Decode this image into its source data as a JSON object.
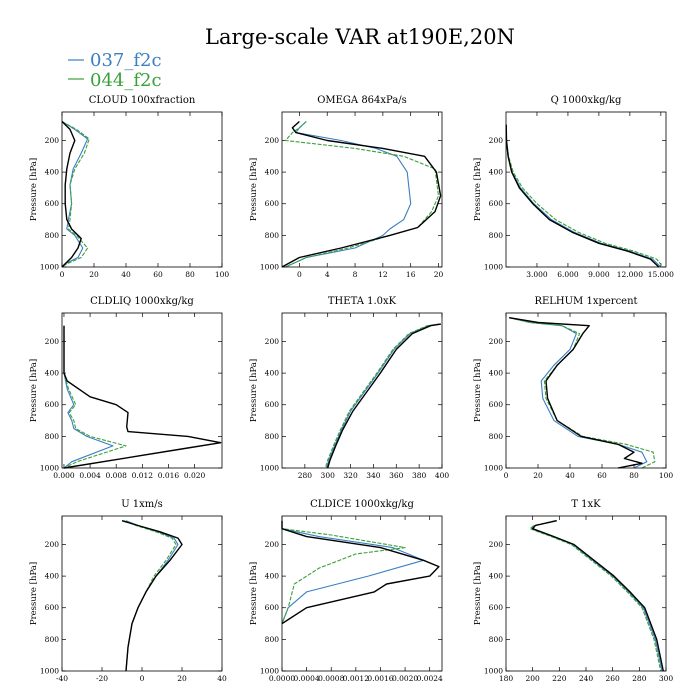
{
  "figure": {
    "title": "Large-scale VAR at190E,20N",
    "colors": {
      "s037": "#3a7fc0",
      "s044": "#3aa03a",
      "ctrl": "#000000"
    }
  },
  "chart_data": [
    {
      "type": "line",
      "title": "CLOUD  100xfraction",
      "ylabel": "Pressure [hPa]",
      "xlim": [
        0,
        100
      ],
      "ylim": [
        1000,
        20
      ],
      "xticks": [
        "0",
        "20",
        "40",
        "60",
        "80",
        "100"
      ],
      "yticks": [
        "200",
        "400",
        "600",
        "800",
        "1000"
      ],
      "series": [
        {
          "name": "037_f2c",
          "x": [
            0,
            8,
            16,
            12,
            7,
            5,
            6,
            4,
            3,
            8,
            13,
            10,
            2,
            0
          ],
          "y": [
            80,
            130,
            190,
            280,
            380,
            480,
            600,
            700,
            760,
            800,
            880,
            940,
            980,
            1000
          ]
        },
        {
          "name": "044_f2c",
          "x": [
            0,
            9,
            17,
            14,
            8,
            5,
            6,
            5,
            4,
            9,
            16,
            12,
            3,
            0
          ],
          "y": [
            80,
            130,
            190,
            280,
            380,
            480,
            600,
            700,
            760,
            800,
            880,
            940,
            980,
            1000
          ]
        },
        {
          "name": "",
          "x": [
            0,
            5,
            8,
            5,
            3,
            2,
            2,
            3,
            6,
            12,
            10,
            6,
            2,
            0
          ],
          "y": [
            80,
            130,
            200,
            280,
            380,
            480,
            600,
            700,
            760,
            820,
            880,
            940,
            980,
            1000
          ]
        }
      ]
    },
    {
      "type": "line",
      "title": "OMEGA  864xPa/s",
      "ylabel": "Pressure [hPa]",
      "xlim": [
        -2.5,
        20.5
      ],
      "ylim": [
        1000,
        20
      ],
      "xticks": [
        "0",
        "4",
        "8",
        "12",
        "16",
        "20"
      ],
      "yticks": [
        "200",
        "400",
        "600",
        "800",
        "1000"
      ],
      "series": [
        {
          "name": "037_f2c",
          "x": [
            1,
            0,
            -0.5,
            6,
            11,
            14,
            15.5,
            16,
            15,
            13,
            12,
            8,
            1,
            -2
          ],
          "y": [
            80,
            120,
            150,
            200,
            250,
            300,
            400,
            600,
            700,
            760,
            800,
            880,
            940,
            1000
          ]
        },
        {
          "name": "044_f2c",
          "x": [
            1,
            0,
            -1,
            -2,
            8,
            15,
            19.5,
            20,
            19,
            17,
            13,
            7,
            1,
            -2
          ],
          "y": [
            80,
            120,
            150,
            200,
            250,
            300,
            380,
            550,
            650,
            750,
            800,
            880,
            940,
            1000
          ]
        },
        {
          "name": "",
          "x": [
            0,
            -1,
            -0.5,
            4,
            12,
            18,
            19.7,
            20.3,
            19.5,
            17,
            13,
            6,
            0,
            -2.5
          ],
          "y": [
            80,
            120,
            150,
            200,
            250,
            300,
            400,
            550,
            650,
            750,
            800,
            880,
            940,
            1000
          ]
        }
      ]
    },
    {
      "type": "line",
      "title": "Q  1000xkg/kg",
      "ylabel": "Pressure [hPa]",
      "xlim": [
        0,
        15.5
      ],
      "ylim": [
        1000,
        20
      ],
      "xticks": [
        "3.000",
        "6.000",
        "9.000",
        "12.000",
        "15.000"
      ],
      "yticks": [
        "200",
        "400",
        "600",
        "800",
        "1000"
      ],
      "series": [
        {
          "name": "037_f2c",
          "x": [
            0.02,
            0.05,
            0.2,
            0.6,
            1.4,
            2.7,
            4.4,
            6.6,
            9.2,
            12,
            14.2,
            15
          ],
          "y": [
            100,
            200,
            300,
            400,
            500,
            600,
            700,
            780,
            850,
            900,
            950,
            1000
          ]
        },
        {
          "name": "044_f2c",
          "x": [
            0.02,
            0.05,
            0.25,
            0.7,
            1.6,
            3,
            4.8,
            7,
            9.6,
            12.4,
            14.6,
            15.2
          ],
          "y": [
            100,
            200,
            300,
            400,
            500,
            600,
            700,
            780,
            850,
            900,
            950,
            1000
          ]
        },
        {
          "name": "",
          "x": [
            0.02,
            0.05,
            0.2,
            0.55,
            1.3,
            2.6,
            4.2,
            6.4,
            9,
            11.8,
            14,
            14.8
          ],
          "y": [
            100,
            200,
            300,
            400,
            500,
            600,
            700,
            780,
            850,
            900,
            950,
            1000
          ]
        }
      ]
    },
    {
      "type": "line",
      "title": "CLDLIQ  1000xkg/kg",
      "ylabel": "Pressure [hPa]",
      "xlim": [
        -0.0003,
        0.0242
      ],
      "ylim": [
        1000,
        20
      ],
      "xticks": [
        "0.000",
        "0.004",
        "0.008",
        "0.012",
        "0.016",
        "0.020"
      ],
      "yticks": [
        "200",
        "400",
        "600",
        "800",
        "1000"
      ],
      "series": [
        {
          "name": "037_f2c",
          "x": [
            0,
            0,
            0.0005,
            0.0015,
            0.0006,
            0.0012,
            0.0015,
            0.0035,
            0.0075,
            0.0012,
            0
          ],
          "y": [
            100,
            400,
            500,
            600,
            650,
            700,
            750,
            800,
            860,
            960,
            1000
          ]
        },
        {
          "name": "044_f2c",
          "x": [
            0,
            0,
            0.0007,
            0.0018,
            0.0008,
            0.0015,
            0.0018,
            0.004,
            0.0095,
            0.002,
            0
          ],
          "y": [
            100,
            400,
            500,
            600,
            650,
            700,
            750,
            800,
            860,
            960,
            1000
          ]
        },
        {
          "name": "",
          "x": [
            0,
            0,
            0.0005,
            0.004,
            0.008,
            0.0098,
            0.0097,
            0.0096,
            0.0098,
            0.019,
            0.024,
            0.018,
            0
          ],
          "y": [
            100,
            400,
            450,
            550,
            600,
            650,
            700,
            740,
            770,
            800,
            840,
            880,
            1000
          ]
        }
      ]
    },
    {
      "type": "line",
      "title": "THETA  1.0xK",
      "ylabel": "Pressure [hPa]",
      "xlim": [
        260,
        400
      ],
      "ylim": [
        1000,
        20
      ],
      "xticks": [
        "280",
        "300",
        "320",
        "340",
        "360",
        "380",
        "400"
      ],
      "yticks": [
        "200",
        "400",
        "600",
        "800",
        "1000"
      ],
      "series": [
        {
          "name": "037_f2c",
          "x": [
            398,
            388,
            372,
            358,
            344,
            332,
            320,
            312,
            306,
            301,
            299
          ],
          "y": [
            90,
            100,
            150,
            250,
            400,
            520,
            640,
            760,
            860,
            950,
            1000
          ]
        },
        {
          "name": "044_f2c",
          "x": [
            398,
            387,
            371,
            357,
            343,
            331,
            319,
            311,
            305,
            300,
            298
          ],
          "y": [
            90,
            100,
            150,
            250,
            400,
            520,
            640,
            760,
            860,
            950,
            1000
          ]
        },
        {
          "name": "",
          "x": [
            399,
            390,
            374,
            360,
            346,
            334,
            322,
            313,
            307,
            302,
            300
          ],
          "y": [
            90,
            100,
            150,
            250,
            400,
            520,
            640,
            760,
            860,
            950,
            1000
          ]
        }
      ]
    },
    {
      "type": "line",
      "title": "RELHUM  1xpercent",
      "ylabel": "Pressure [hPa]",
      "xlim": [
        0,
        100
      ],
      "ylim": [
        1000,
        20
      ],
      "xticks": [
        "0",
        "20",
        "40",
        "60",
        "80",
        "100"
      ],
      "yticks": [
        "200",
        "400",
        "600",
        "800",
        "1000"
      ],
      "series": [
        {
          "name": "037_f2c",
          "x": [
            2,
            15,
            35,
            44,
            40,
            30,
            22,
            23,
            30,
            45,
            70,
            85,
            88,
            80
          ],
          "y": [
            50,
            80,
            100,
            150,
            250,
            350,
            450,
            560,
            700,
            800,
            850,
            900,
            960,
            1000
          ]
        },
        {
          "name": "044_f2c",
          "x": [
            2,
            15,
            35,
            46,
            42,
            32,
            24,
            25,
            32,
            48,
            75,
            92,
            93,
            85
          ],
          "y": [
            50,
            80,
            100,
            150,
            250,
            350,
            450,
            560,
            700,
            800,
            850,
            900,
            960,
            1000
          ]
        },
        {
          "name": "",
          "x": [
            2,
            20,
            52,
            48,
            42,
            32,
            25,
            26,
            32,
            47,
            70,
            80,
            74,
            85,
            70
          ],
          "y": [
            50,
            80,
            100,
            150,
            250,
            350,
            450,
            560,
            700,
            800,
            850,
            900,
            940,
            970,
            1000
          ]
        }
      ]
    },
    {
      "type": "line",
      "title": "U  1xm/s",
      "ylabel": "Pressure [hPa]",
      "xlim": [
        -40,
        40
      ],
      "ylim": [
        1000,
        20
      ],
      "xticks": [
        "-40",
        "-20",
        "0",
        "20",
        "40"
      ],
      "yticks": [
        "200",
        "400",
        "600",
        "800",
        "1000"
      ],
      "series": [
        {
          "name": "037_f2c",
          "x": [
            -8,
            -2,
            8,
            16,
            18,
            13,
            7,
            2,
            -2,
            -5,
            -7,
            -8
          ],
          "y": [
            50,
            80,
            120,
            160,
            200,
            300,
            400,
            500,
            600,
            700,
            850,
            1000
          ]
        },
        {
          "name": "044_f2c",
          "x": [
            -9,
            -3,
            7,
            15,
            17,
            12,
            6,
            2,
            -2,
            -5,
            -7,
            -8
          ],
          "y": [
            50,
            80,
            120,
            160,
            200,
            300,
            400,
            500,
            600,
            700,
            850,
            1000
          ]
        },
        {
          "name": "",
          "x": [
            -10,
            -2,
            9,
            18,
            20,
            14,
            7,
            2,
            -2,
            -5,
            -7,
            -8
          ],
          "y": [
            50,
            80,
            120,
            160,
            200,
            300,
            400,
            500,
            600,
            700,
            850,
            1000
          ]
        }
      ]
    },
    {
      "type": "line",
      "title": "CLDICE  1000xkg/kg",
      "ylabel": "Pressure [hPa]",
      "xlim": [
        0,
        0.0026
      ],
      "ylim": [
        1000,
        20
      ],
      "xticks": [
        "0.0000",
        "0.0004",
        "0.0008",
        "0.0012",
        "0.0016",
        "0.0020",
        "0.0024"
      ],
      "yticks": [
        "200",
        "400",
        "600",
        "800",
        "1000"
      ],
      "series": [
        {
          "name": "037_f2c",
          "x": [
            0,
            0,
            0.0006,
            0.0018,
            0.0023,
            0.0014,
            0.0004,
            0.0001,
            0
          ],
          "y": [
            50,
            100,
            150,
            220,
            300,
            400,
            500,
            600,
            700
          ]
        },
        {
          "name": "044_f2c",
          "x": [
            0,
            0,
            0.0008,
            0.002,
            0.0012,
            0.0006,
            0.0002,
            0.0001,
            0
          ],
          "y": [
            50,
            100,
            140,
            220,
            260,
            350,
            450,
            600,
            700
          ]
        },
        {
          "name": "",
          "x": [
            0,
            0,
            0.0004,
            0.0016,
            0.0023,
            0.00255,
            0.0024,
            0.0017,
            0.0015,
            0.0004,
            0
          ],
          "y": [
            50,
            100,
            150,
            220,
            300,
            340,
            400,
            450,
            500,
            600,
            700
          ]
        }
      ]
    },
    {
      "type": "line",
      "title": "T  1xK",
      "ylabel": "Pressure [hPa]",
      "xlim": [
        180,
        300
      ],
      "ylim": [
        1000,
        20
      ],
      "xticks": [
        "180",
        "200",
        "220",
        "240",
        "260",
        "280",
        "300"
      ],
      "yticks": [
        "200",
        "400",
        "600",
        "800",
        "1000"
      ],
      "series": [
        {
          "name": "037_f2c",
          "x": [
            218,
            202,
            199,
            215,
            230,
            245,
            260,
            272,
            283,
            292,
            297
          ],
          "y": [
            50,
            80,
            100,
            150,
            200,
            300,
            400,
            500,
            600,
            800,
            1000
          ]
        },
        {
          "name": "044_f2c",
          "x": [
            217,
            201,
            198,
            214,
            229,
            244,
            259,
            271,
            282,
            291,
            296
          ],
          "y": [
            50,
            80,
            100,
            150,
            200,
            300,
            400,
            500,
            600,
            800,
            1000
          ]
        },
        {
          "name": "",
          "x": [
            218,
            202,
            200,
            216,
            231,
            246,
            261,
            273,
            284,
            293,
            298
          ],
          "y": [
            50,
            80,
            100,
            150,
            200,
            300,
            400,
            500,
            600,
            800,
            1000
          ]
        }
      ]
    }
  ]
}
